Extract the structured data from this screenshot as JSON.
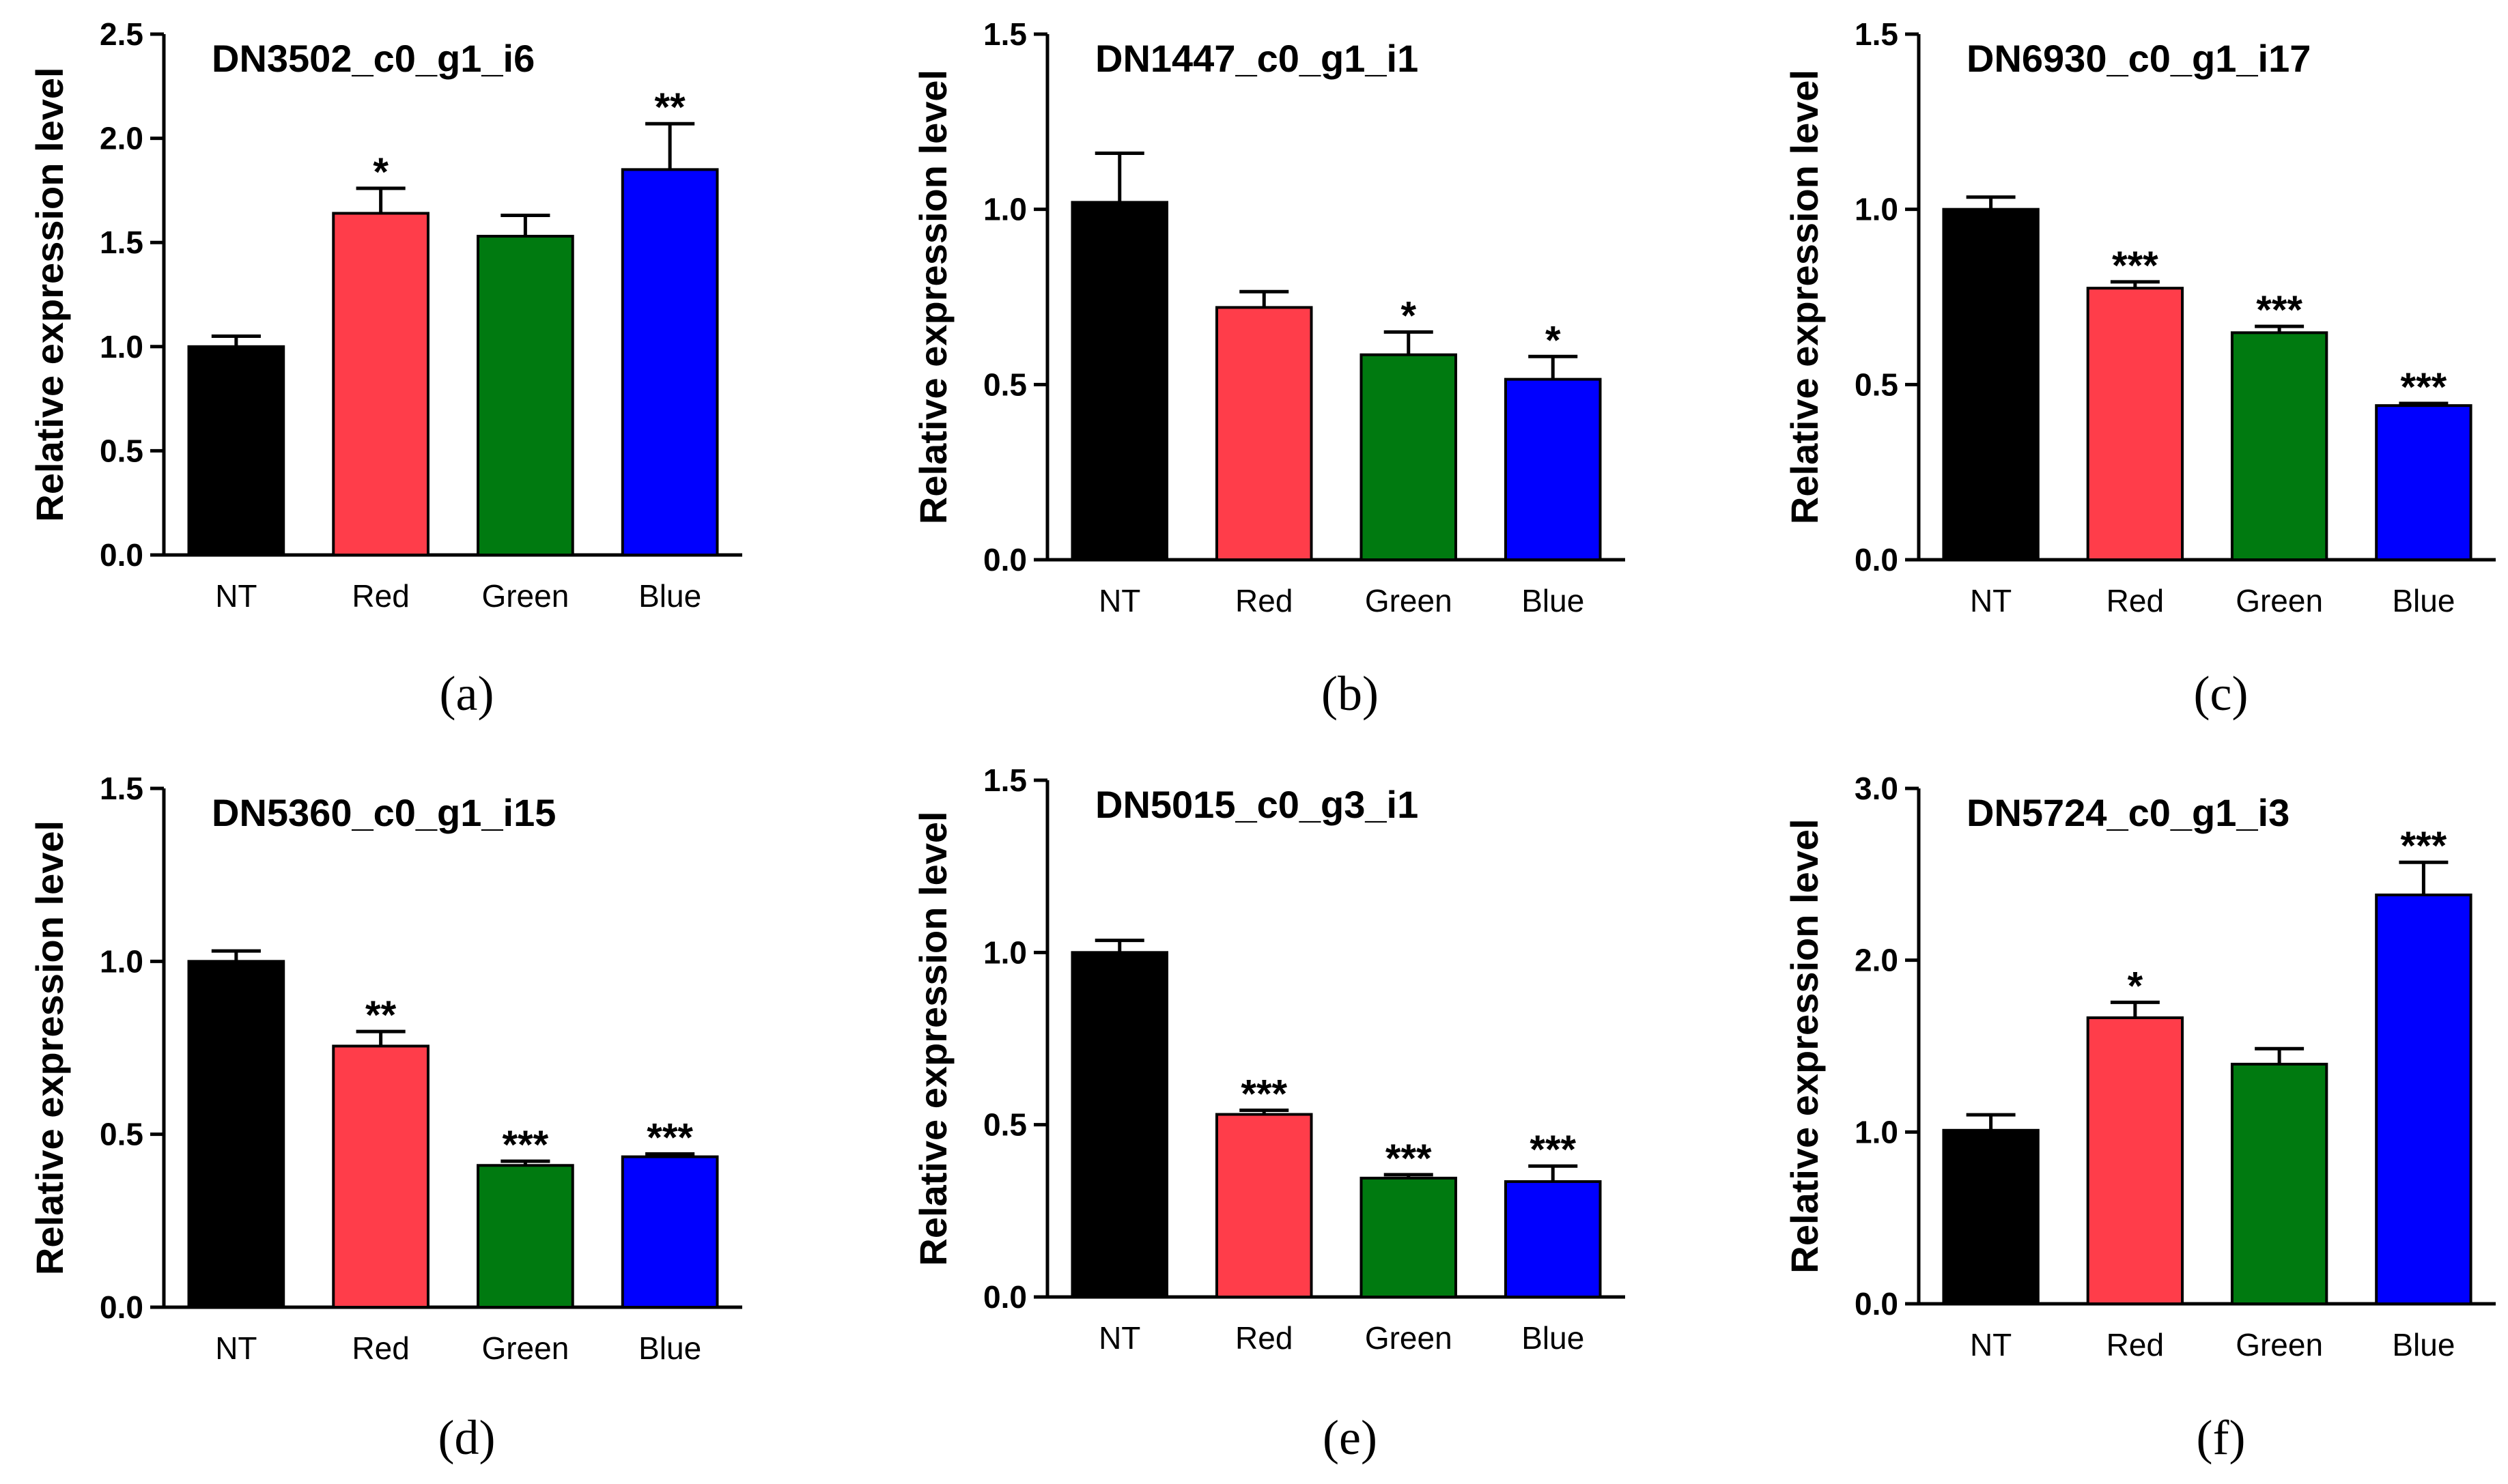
{
  "colors": {
    "NT": "#000000",
    "Red": "#ff3d4a",
    "Green": "#007a10",
    "Blue": "#0000ff"
  },
  "chart_data": [
    {
      "type": "bar",
      "panel": "(a)",
      "title": "DN3502_c0_g1_i6",
      "ylabel": "Relative expression level",
      "xlabel": "",
      "categories": [
        "NT",
        "Red",
        "Green",
        "Blue"
      ],
      "values": [
        1.0,
        1.64,
        1.53,
        1.85
      ],
      "errors": [
        0.05,
        0.12,
        0.1,
        0.22
      ],
      "significance": [
        "",
        "*",
        "",
        "**"
      ],
      "ylim": [
        0,
        2.5
      ],
      "yticks": [
        "0.0",
        "0.5",
        "1.0",
        "1.5",
        "2.0",
        "2.5"
      ]
    },
    {
      "type": "bar",
      "panel": "(b)",
      "title": "DN1447_c0_g1_i1",
      "ylabel": "Relative expression level",
      "xlabel": "",
      "categories": [
        "NT",
        "Red",
        "Green",
        "Blue"
      ],
      "values": [
        1.02,
        0.72,
        0.585,
        0.515
      ],
      "errors": [
        0.14,
        0.045,
        0.065,
        0.065
      ],
      "significance": [
        "",
        "",
        "*",
        "*"
      ],
      "ylim": [
        0,
        1.5
      ],
      "yticks": [
        "0.0",
        "0.5",
        "1.0",
        "1.5"
      ]
    },
    {
      "type": "bar",
      "panel": "(c)",
      "title": "DN6930_c0_g1_i17",
      "ylabel": "Relative expression level",
      "xlabel": "",
      "categories": [
        "NT",
        "Red",
        "Green",
        "Blue"
      ],
      "values": [
        1.0,
        0.775,
        0.648,
        0.44
      ],
      "errors": [
        0.035,
        0.018,
        0.018,
        0.006
      ],
      "significance": [
        "",
        "***",
        "***",
        "***"
      ],
      "ylim": [
        0,
        1.5
      ],
      "yticks": [
        "0.0",
        "0.5",
        "1.0",
        "1.5"
      ]
    },
    {
      "type": "bar",
      "panel": "(d)",
      "title": "DN5360_c0_g1_i15",
      "ylabel": "Relative expression level",
      "xlabel": "",
      "categories": [
        "NT",
        "Red",
        "Green",
        "Blue"
      ],
      "values": [
        1.0,
        0.755,
        0.41,
        0.435
      ],
      "errors": [
        0.03,
        0.042,
        0.012,
        0.008
      ],
      "significance": [
        "",
        "**",
        "***",
        "***"
      ],
      "ylim": [
        0,
        1.5
      ],
      "yticks": [
        "0.0",
        "0.5",
        "1.0",
        "1.5"
      ]
    },
    {
      "type": "bar",
      "panel": "(e)",
      "title": "DN5015_c0_g3_i1",
      "ylabel": "Relative expression level",
      "xlabel": "",
      "categories": [
        "NT",
        "Red",
        "Green",
        "Blue"
      ],
      "values": [
        1.0,
        0.53,
        0.345,
        0.335
      ],
      "errors": [
        0.035,
        0.012,
        0.01,
        0.045
      ],
      "significance": [
        "",
        "***",
        "***",
        "***"
      ],
      "ylim": [
        0,
        1.5
      ],
      "yticks": [
        "0.0",
        "0.5",
        "1.0",
        "1.5"
      ]
    },
    {
      "type": "bar",
      "panel": "(f)",
      "title": "DN5724_c0_g1_i3",
      "ylabel": "Relative expression level",
      "xlabel": "",
      "categories": [
        "NT",
        "Red",
        "Green",
        "Blue"
      ],
      "values": [
        1.01,
        1.665,
        1.395,
        2.38
      ],
      "errors": [
        0.09,
        0.09,
        0.09,
        0.19
      ],
      "significance": [
        "",
        "*",
        "",
        "***"
      ],
      "ylim": [
        0,
        3.0
      ],
      "yticks": [
        "0.0",
        "1.0",
        "2.0",
        "3.0"
      ]
    }
  ]
}
